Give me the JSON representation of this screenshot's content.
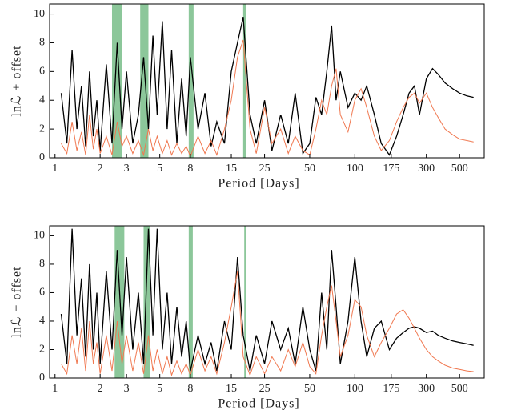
{
  "chart_data": [
    {
      "type": "line",
      "x_label": "Period [Days]",
      "y_label": "lnℒ + offset",
      "log_x": true,
      "xlim": [
        0.92,
        730
      ],
      "ylim": [
        0,
        10.7
      ],
      "xticks": [
        1,
        2,
        3,
        5,
        8,
        15,
        25,
        50,
        100,
        175,
        300,
        500
      ],
      "yticks": [
        0,
        2,
        4,
        6,
        8,
        10
      ],
      "bands": [
        [
          2.4,
          2.8
        ],
        [
          3.7,
          4.2
        ],
        [
          7.8,
          8.4
        ],
        [
          18,
          18.8
        ]
      ],
      "band_color": "#8cc79a",
      "x": [
        1.1,
        1.2,
        1.3,
        1.4,
        1.5,
        1.6,
        1.7,
        1.8,
        1.9,
        2.0,
        2.2,
        2.4,
        2.6,
        2.8,
        3.0,
        3.3,
        3.6,
        3.9,
        4.2,
        4.5,
        4.8,
        5.2,
        5.6,
        6,
        6.5,
        7,
        7.5,
        8,
        9,
        10,
        11,
        12,
        13.5,
        15,
        16.5,
        18,
        20,
        22,
        25,
        28,
        32,
        36,
        40,
        45,
        50,
        55,
        60,
        65,
        70,
        75,
        80,
        90,
        100,
        110,
        120,
        135,
        150,
        170,
        190,
        210,
        230,
        250,
        270,
        300,
        330,
        360,
        400,
        450,
        500,
        560,
        620
      ],
      "series": [
        {
          "color": "#000000",
          "values": [
            4.5,
            1,
            7.5,
            2,
            5,
            0.8,
            6,
            1.5,
            4,
            0.5,
            6.5,
            1,
            8,
            2,
            6,
            1,
            3,
            7,
            2,
            8.5,
            3,
            9.5,
            2,
            7.5,
            1,
            5.5,
            1.5,
            7,
            2,
            4.5,
            0.8,
            2.5,
            1,
            6,
            8,
            9.8,
            3,
            1,
            4,
            0.5,
            3,
            1,
            4.5,
            0.3,
            1,
            4.2,
            3,
            6,
            9.2,
            4,
            6,
            3.5,
            4.5,
            4,
            5,
            3,
            1,
            0.2,
            1.5,
            3,
            4.5,
            5,
            3,
            5.5,
            6.2,
            5.8,
            5.2,
            4.8,
            4.5,
            4.3,
            4.2
          ]
        },
        {
          "color": "#f07850",
          "values": [
            1,
            0.3,
            2.5,
            0.5,
            1.8,
            0.2,
            3,
            0.6,
            2,
            0.3,
            1.5,
            0.2,
            2.5,
            0.8,
            1.5,
            0.3,
            1.2,
            0.2,
            2,
            0.5,
            1.5,
            0.3,
            1.2,
            0.2,
            1,
            0.3,
            0.8,
            0.1,
            1.5,
            0.3,
            1.2,
            0.2,
            2,
            4,
            7,
            8.2,
            2,
            0.3,
            3.5,
            1,
            2,
            0.3,
            1.5,
            0.5,
            0.2,
            2,
            4,
            3,
            5,
            6.2,
            3,
            1.8,
            4,
            4.8,
            3.5,
            1.5,
            0.5,
            1.2,
            2.5,
            3.5,
            4.2,
            4.5,
            3.8,
            4.5,
            3.5,
            2.8,
            2,
            1.6,
            1.3,
            1.2,
            1.1
          ]
        }
      ]
    },
    {
      "type": "line",
      "x_label": "Period [Days]",
      "y_label": "lnℒ − offset",
      "log_x": true,
      "xlim": [
        0.92,
        730
      ],
      "ylim": [
        0,
        10.7
      ],
      "xticks": [
        1,
        2,
        3,
        5,
        8,
        15,
        25,
        50,
        100,
        175,
        300,
        500
      ],
      "yticks": [
        0,
        2,
        4,
        6,
        8,
        10
      ],
      "bands": [
        [
          2.5,
          2.9
        ],
        [
          3.9,
          4.3
        ],
        [
          7.8,
          8.3
        ],
        [
          18.3,
          18.8
        ]
      ],
      "band_color": "#8cc79a",
      "x": [
        1.1,
        1.2,
        1.3,
        1.4,
        1.5,
        1.6,
        1.7,
        1.8,
        1.9,
        2.0,
        2.2,
        2.4,
        2.6,
        2.8,
        3.0,
        3.3,
        3.6,
        3.9,
        4.2,
        4.5,
        4.8,
        5.2,
        5.6,
        6,
        6.5,
        7,
        7.5,
        8,
        9,
        10,
        11,
        12,
        13.5,
        15,
        16.5,
        18,
        20,
        22,
        25,
        28,
        32,
        36,
        40,
        45,
        50,
        55,
        60,
        65,
        70,
        75,
        80,
        90,
        100,
        110,
        120,
        135,
        150,
        170,
        190,
        210,
        230,
        250,
        270,
        300,
        330,
        360,
        400,
        450,
        500,
        560,
        620
      ],
      "series": [
        {
          "color": "#000000",
          "values": [
            4.5,
            1,
            10.5,
            3,
            7,
            1.5,
            8,
            2,
            6,
            1,
            7.5,
            2,
            9,
            3,
            8.5,
            2,
            6,
            1,
            10.5,
            3,
            10.5,
            2,
            6,
            1,
            5,
            1.5,
            4,
            0.5,
            3,
            1,
            2.5,
            0.5,
            4,
            2,
            8.5,
            3,
            0.5,
            3,
            1,
            4,
            2,
            3.5,
            1,
            5,
            2,
            0.5,
            6,
            2,
            9,
            5,
            1,
            4,
            8.5,
            4,
            1.5,
            3.5,
            4,
            2,
            2.8,
            3.2,
            3.5,
            3.6,
            3.5,
            3.2,
            3.3,
            3,
            2.8,
            2.6,
            2.5,
            2.4,
            2.3
          ]
        },
        {
          "color": "#f07850",
          "values": [
            1,
            0.3,
            3,
            1,
            3.5,
            0.5,
            4,
            1,
            2.5,
            0.3,
            3,
            0.5,
            4,
            1,
            3,
            0.5,
            2.5,
            0.3,
            3,
            0.5,
            2,
            0.3,
            1.5,
            0.2,
            1.2,
            0.3,
            1,
            0.2,
            2,
            0.5,
            1.5,
            0.3,
            2.5,
            5,
            7.5,
            1.5,
            0.2,
            1.5,
            0.3,
            1.5,
            0.5,
            2,
            0.8,
            2.5,
            0.8,
            0.3,
            3,
            5,
            6.5,
            4,
            1.5,
            3,
            5.5,
            5,
            3,
            1.5,
            2.5,
            3.5,
            4.5,
            4.8,
            4.2,
            3.5,
            2.8,
            2,
            1.5,
            1.2,
            0.9,
            0.7,
            0.6,
            0.5,
            0.45
          ]
        }
      ]
    }
  ]
}
